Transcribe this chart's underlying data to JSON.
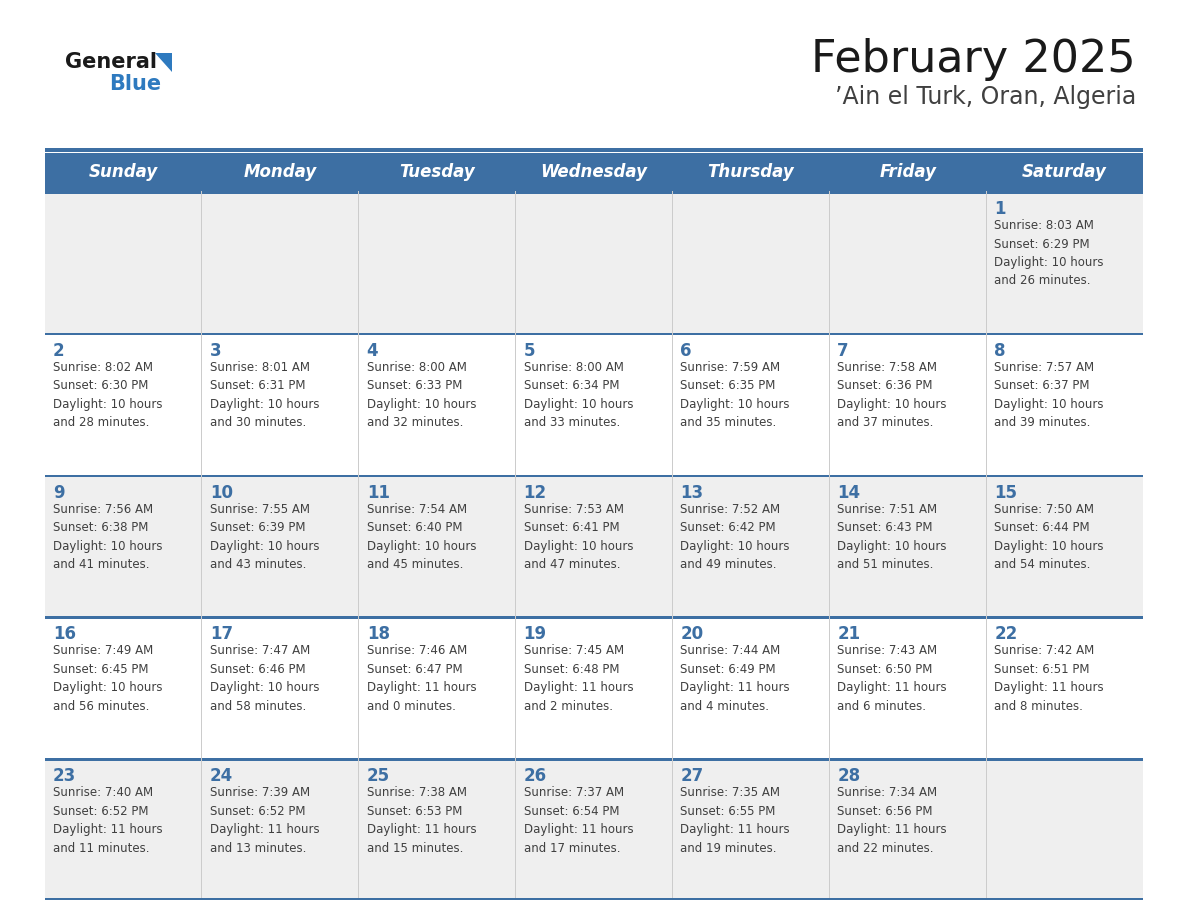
{
  "title": "February 2025",
  "subtitle": "’Ain el Turk, Oran, Algeria",
  "header_bg_color": "#3D6FA3",
  "header_text_color": "#FFFFFF",
  "day_names": [
    "Sunday",
    "Monday",
    "Tuesday",
    "Wednesday",
    "Thursday",
    "Friday",
    "Saturday"
  ],
  "row_bg_colors": [
    "#EFEFEF",
    "#FFFFFF",
    "#EFEFEF",
    "#FFFFFF",
    "#EFEFEF"
  ],
  "cell_border_color": "#3D6FA3",
  "date_text_color": "#3D6FA3",
  "info_text_color": "#404040",
  "title_color": "#1a1a1a",
  "subtitle_color": "#404040",
  "logo_general_color": "#1a1a1a",
  "logo_blue_color": "#2E7ABF",
  "calendar_data": [
    {
      "day": 1,
      "row": 0,
      "col": 6,
      "sunrise": "8:03 AM",
      "sunset": "6:29 PM",
      "daylight": "10 hours\nand 26 minutes."
    },
    {
      "day": 2,
      "row": 1,
      "col": 0,
      "sunrise": "8:02 AM",
      "sunset": "6:30 PM",
      "daylight": "10 hours\nand 28 minutes."
    },
    {
      "day": 3,
      "row": 1,
      "col": 1,
      "sunrise": "8:01 AM",
      "sunset": "6:31 PM",
      "daylight": "10 hours\nand 30 minutes."
    },
    {
      "day": 4,
      "row": 1,
      "col": 2,
      "sunrise": "8:00 AM",
      "sunset": "6:33 PM",
      "daylight": "10 hours\nand 32 minutes."
    },
    {
      "day": 5,
      "row": 1,
      "col": 3,
      "sunrise": "8:00 AM",
      "sunset": "6:34 PM",
      "daylight": "10 hours\nand 33 minutes."
    },
    {
      "day": 6,
      "row": 1,
      "col": 4,
      "sunrise": "7:59 AM",
      "sunset": "6:35 PM",
      "daylight": "10 hours\nand 35 minutes."
    },
    {
      "day": 7,
      "row": 1,
      "col": 5,
      "sunrise": "7:58 AM",
      "sunset": "6:36 PM",
      "daylight": "10 hours\nand 37 minutes."
    },
    {
      "day": 8,
      "row": 1,
      "col": 6,
      "sunrise": "7:57 AM",
      "sunset": "6:37 PM",
      "daylight": "10 hours\nand 39 minutes."
    },
    {
      "day": 9,
      "row": 2,
      "col": 0,
      "sunrise": "7:56 AM",
      "sunset": "6:38 PM",
      "daylight": "10 hours\nand 41 minutes."
    },
    {
      "day": 10,
      "row": 2,
      "col": 1,
      "sunrise": "7:55 AM",
      "sunset": "6:39 PM",
      "daylight": "10 hours\nand 43 minutes."
    },
    {
      "day": 11,
      "row": 2,
      "col": 2,
      "sunrise": "7:54 AM",
      "sunset": "6:40 PM",
      "daylight": "10 hours\nand 45 minutes."
    },
    {
      "day": 12,
      "row": 2,
      "col": 3,
      "sunrise": "7:53 AM",
      "sunset": "6:41 PM",
      "daylight": "10 hours\nand 47 minutes."
    },
    {
      "day": 13,
      "row": 2,
      "col": 4,
      "sunrise": "7:52 AM",
      "sunset": "6:42 PM",
      "daylight": "10 hours\nand 49 minutes."
    },
    {
      "day": 14,
      "row": 2,
      "col": 5,
      "sunrise": "7:51 AM",
      "sunset": "6:43 PM",
      "daylight": "10 hours\nand 51 minutes."
    },
    {
      "day": 15,
      "row": 2,
      "col": 6,
      "sunrise": "7:50 AM",
      "sunset": "6:44 PM",
      "daylight": "10 hours\nand 54 minutes."
    },
    {
      "day": 16,
      "row": 3,
      "col": 0,
      "sunrise": "7:49 AM",
      "sunset": "6:45 PM",
      "daylight": "10 hours\nand 56 minutes."
    },
    {
      "day": 17,
      "row": 3,
      "col": 1,
      "sunrise": "7:47 AM",
      "sunset": "6:46 PM",
      "daylight": "10 hours\nand 58 minutes."
    },
    {
      "day": 18,
      "row": 3,
      "col": 2,
      "sunrise": "7:46 AM",
      "sunset": "6:47 PM",
      "daylight": "11 hours\nand 0 minutes."
    },
    {
      "day": 19,
      "row": 3,
      "col": 3,
      "sunrise": "7:45 AM",
      "sunset": "6:48 PM",
      "daylight": "11 hours\nand 2 minutes."
    },
    {
      "day": 20,
      "row": 3,
      "col": 4,
      "sunrise": "7:44 AM",
      "sunset": "6:49 PM",
      "daylight": "11 hours\nand 4 minutes."
    },
    {
      "day": 21,
      "row": 3,
      "col": 5,
      "sunrise": "7:43 AM",
      "sunset": "6:50 PM",
      "daylight": "11 hours\nand 6 minutes."
    },
    {
      "day": 22,
      "row": 3,
      "col": 6,
      "sunrise": "7:42 AM",
      "sunset": "6:51 PM",
      "daylight": "11 hours\nand 8 minutes."
    },
    {
      "day": 23,
      "row": 4,
      "col": 0,
      "sunrise": "7:40 AM",
      "sunset": "6:52 PM",
      "daylight": "11 hours\nand 11 minutes."
    },
    {
      "day": 24,
      "row": 4,
      "col": 1,
      "sunrise": "7:39 AM",
      "sunset": "6:52 PM",
      "daylight": "11 hours\nand 13 minutes."
    },
    {
      "day": 25,
      "row": 4,
      "col": 2,
      "sunrise": "7:38 AM",
      "sunset": "6:53 PM",
      "daylight": "11 hours\nand 15 minutes."
    },
    {
      "day": 26,
      "row": 4,
      "col": 3,
      "sunrise": "7:37 AM",
      "sunset": "6:54 PM",
      "daylight": "11 hours\nand 17 minutes."
    },
    {
      "day": 27,
      "row": 4,
      "col": 4,
      "sunrise": "7:35 AM",
      "sunset": "6:55 PM",
      "daylight": "11 hours\nand 19 minutes."
    },
    {
      "day": 28,
      "row": 4,
      "col": 5,
      "sunrise": "7:34 AM",
      "sunset": "6:56 PM",
      "daylight": "11 hours\nand 22 minutes."
    }
  ]
}
